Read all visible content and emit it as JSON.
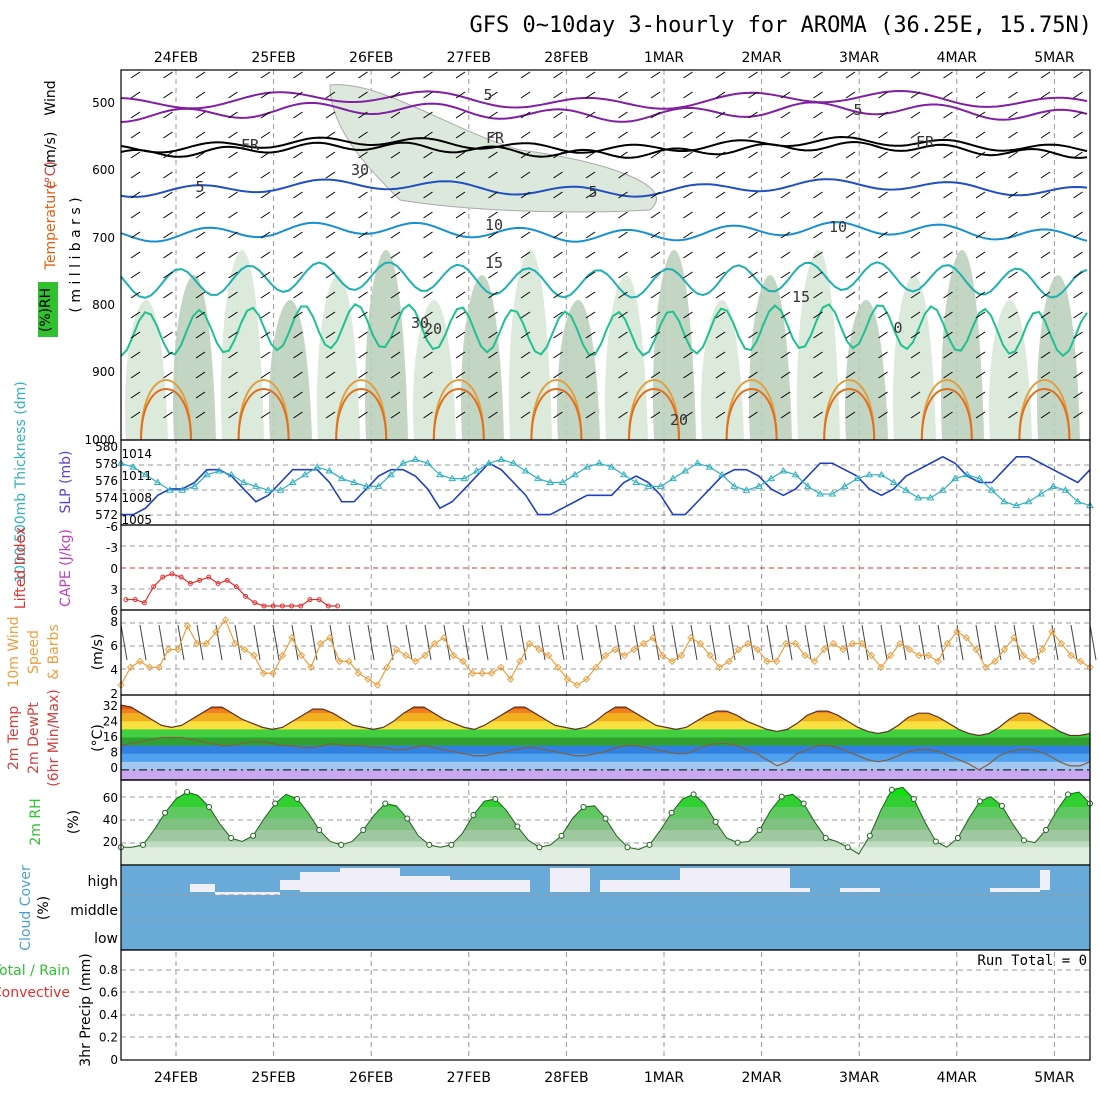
{
  "title": "GFS 0~10day 3-hourly for AROMA (36.25E, 15.75N)",
  "dates": [
    "24FEB",
    "25FEB",
    "26FEB",
    "27FEB",
    "28FEB",
    "1MAR",
    "2MAR",
    "3MAR",
    "4MAR",
    "5MAR"
  ],
  "run_total_label": "Run Total = 0",
  "colors": {
    "wind_speed": "#e8a040",
    "lifted_index": "#e03030",
    "slp": "#2040c0",
    "thickness": "#30b0c0",
    "rh_green": "#30c030",
    "cloud": "#6aaad8",
    "temp_fill": "#e06010",
    "dewpoint": "#806040"
  },
  "chart_data": [
    {
      "panel": "upper-air",
      "type": "heatmap",
      "ylabels": [
        {
          "text": "Wind",
          "color": "#000000"
        },
        {
          "text": "(m/s)",
          "color": "#000000"
        },
        {
          "text": "Temperature",
          "color": "#e06010"
        },
        {
          "text": "(°C)",
          "color": "#d04040"
        },
        {
          "text": "RH",
          "color": "#000000"
        },
        {
          "text": "(%)",
          "color": "#000000"
        },
        {
          "text": "( m i l l i b a r s )",
          "color": "#000000"
        }
      ],
      "yticks": [
        "500",
        "600",
        "700",
        "800",
        "900",
        "1000"
      ],
      "ylim": [
        450,
        1000
      ],
      "contour_labels": [
        "5",
        "5",
        "FR",
        "FR",
        "FR",
        "5",
        "5",
        "10",
        "10",
        "15",
        "15",
        "20",
        "20",
        "30",
        "30",
        "0"
      ]
    },
    {
      "panel": "slp-thickness",
      "type": "line",
      "ylabel_left": "1000-500mb Thickness (dm)",
      "ylabel_right": "SLP (mb)",
      "yticks_left": [
        "580",
        "578",
        "576",
        "574",
        "572"
      ],
      "yticks_right": [
        "1014",
        "1011",
        "1008",
        "1005"
      ],
      "ylim_slp": [
        1004,
        1016
      ],
      "series": [
        {
          "name": "SLP",
          "axis": "slp",
          "values": [
            1005,
            1005,
            1006,
            1008,
            1009,
            1009,
            1010,
            1012,
            1012,
            1011,
            1009,
            1007,
            1008,
            1010,
            1012,
            1012,
            1012,
            1010,
            1007,
            1007,
            1009,
            1011,
            1012,
            1012,
            1011,
            1009,
            1006,
            1007,
            1009,
            1011,
            1013,
            1012,
            1010,
            1008,
            1005,
            1005,
            1006,
            1007,
            1008,
            1008,
            1008,
            1010,
            1011,
            1010,
            1008,
            1005,
            1005,
            1007,
            1009,
            1011,
            1012,
            1012,
            1011,
            1009,
            1008,
            1009,
            1011,
            1013,
            1013,
            1012,
            1011,
            1009,
            1008,
            1009,
            1011,
            1012,
            1013,
            1014,
            1013,
            1011,
            1010,
            1010,
            1012,
            1014,
            1014,
            1013,
            1012,
            1011,
            1010,
            1012
          ]
        },
        {
          "name": "Thickness",
          "axis": "thickness",
          "values": [
            578.5,
            578,
            577,
            576,
            575,
            575,
            575.5,
            577,
            577.5,
            577,
            576,
            575.5,
            575,
            575,
            576,
            577,
            578,
            577.5,
            576.5,
            576,
            575.5,
            575.5,
            577,
            578.5,
            579,
            578.5,
            577,
            576.5,
            576.5,
            577.5,
            578.5,
            579,
            578.5,
            577.5,
            576.5,
            576,
            576,
            577,
            578,
            578.5,
            578,
            577,
            576,
            575.5,
            575.5,
            576.5,
            577.5,
            578.5,
            578,
            577,
            575.5,
            575,
            575.5,
            576.5,
            577.5,
            577,
            575.5,
            574.5,
            574.5,
            575.5,
            576.5,
            577,
            577,
            576,
            575,
            574,
            574,
            575,
            576.5,
            577,
            576.5,
            575,
            573.5,
            573,
            573.5,
            574.5,
            575.5,
            575,
            573.5,
            573
          ]
        }
      ]
    },
    {
      "panel": "lifted-index",
      "type": "line",
      "ylabel_left": "Lifted Index",
      "ylabel_right": "CAPE (J/kg)",
      "yticks": [
        "-6",
        "-3",
        "0",
        "3",
        "6"
      ],
      "ylim": [
        -6,
        6
      ],
      "series": [
        {
          "name": "Lifted Index",
          "values": [
            5,
            5,
            5.5,
            3,
            1.5,
            1,
            1.5,
            2.5,
            2,
            1.5,
            2.5,
            2,
            3,
            4.5,
            5.5,
            6,
            6,
            6,
            6,
            6,
            5,
            5,
            6,
            6
          ]
        }
      ]
    },
    {
      "panel": "wind-10m",
      "type": "line",
      "ylabel": "10m Wind Speed & Barbs",
      "yunit": "(m/s)",
      "yticks": [
        "8",
        "6",
        "4",
        "2"
      ],
      "ylim": [
        2,
        8.5
      ],
      "values": [
        2.5,
        4,
        4.5,
        4,
        4,
        5.5,
        5.5,
        7.5,
        6,
        6,
        7,
        8,
        6,
        5.5,
        5,
        3.5,
        3.5,
        5,
        6.5,
        5,
        4,
        6,
        6.5,
        4.5,
        4.5,
        3.5,
        3,
        2.5,
        4,
        5.5,
        5,
        4.5,
        5,
        6,
        6.5,
        5,
        4.5,
        3.5,
        3.5,
        3.5,
        4,
        3,
        4.5,
        6,
        5.5,
        5,
        4,
        3,
        2.5,
        3,
        4,
        5,
        5.5,
        5,
        5.5,
        6,
        6.5,
        5,
        4.5,
        5,
        6.5,
        6,
        5,
        4,
        4.5,
        5.5,
        6,
        5.5,
        4.5,
        4.5,
        6,
        6,
        5,
        4.5,
        5.5,
        6,
        5.5,
        6,
        6,
        5,
        4,
        5,
        6,
        5.5,
        5,
        5,
        4.5,
        6,
        7,
        6.5,
        5.5,
        4,
        4.5,
        5.5,
        6.5,
        5,
        4.5,
        5.5,
        7,
        6,
        5,
        4.5,
        4
      ]
    },
    {
      "panel": "temp-2m",
      "type": "area",
      "ylabel": "2m Temp 2m DewPt (6hr Min/Max)",
      "yunit": "(°C)",
      "yticks": [
        "32",
        "24",
        "16",
        "8",
        "0"
      ],
      "ylim": [
        -3,
        35
      ],
      "series": [
        {
          "name": "2m Temp",
          "values": [
            32,
            31,
            28,
            25,
            22,
            21,
            22,
            25,
            28,
            31,
            31,
            28,
            25,
            23,
            21,
            20,
            21,
            24,
            27,
            30,
            30,
            28,
            25,
            22,
            21,
            20,
            21,
            24,
            28,
            31,
            31,
            28,
            25,
            23,
            21,
            20,
            22,
            25,
            28,
            31,
            31,
            28,
            25,
            22,
            21,
            20,
            21,
            24,
            28,
            31,
            31,
            28,
            25,
            22,
            21,
            20,
            21,
            24,
            27,
            29,
            29,
            27,
            24,
            22,
            20,
            19,
            20,
            23,
            27,
            29,
            29,
            27,
            24,
            21,
            19,
            18,
            19,
            22,
            26,
            28,
            28,
            26,
            23,
            20,
            18,
            17,
            18,
            21,
            25,
            28,
            28,
            25,
            22,
            19,
            17,
            17,
            18
          ]
        },
        {
          "name": "2m DewPt",
          "values": [
            12,
            13,
            14,
            15,
            16,
            16,
            16,
            15,
            14,
            13,
            12,
            12,
            13,
            14,
            14,
            13,
            12,
            12,
            11,
            11,
            12,
            13,
            12,
            12,
            12,
            11,
            11,
            10,
            10,
            11,
            12,
            11,
            10,
            9,
            8,
            7,
            7,
            8,
            9,
            10,
            11,
            11,
            10,
            9,
            8,
            7,
            7,
            8,
            9,
            11,
            12,
            12,
            11,
            10,
            9,
            8,
            8,
            10,
            12,
            13,
            13,
            12,
            10,
            8,
            5,
            2,
            4,
            8,
            10,
            12,
            12,
            11,
            9,
            7,
            5,
            4,
            5,
            7,
            9,
            10,
            10,
            9,
            7,
            5,
            3,
            0,
            3,
            7,
            9,
            10,
            10,
            9,
            7,
            4,
            2,
            2,
            4
          ]
        }
      ]
    },
    {
      "panel": "rh-2m",
      "type": "area",
      "ylabel": "2m RH",
      "yunit": "(%)",
      "yticks": [
        "60",
        "40",
        "20"
      ],
      "ylim": [
        8,
        75
      ],
      "values": [
        20,
        20,
        22,
        35,
        50,
        62,
        68,
        65,
        55,
        40,
        28,
        25,
        30,
        45,
        58,
        66,
        62,
        50,
        35,
        25,
        22,
        25,
        35,
        48,
        58,
        56,
        45,
        30,
        22,
        20,
        22,
        32,
        48,
        60,
        62,
        52,
        38,
        26,
        20,
        22,
        30,
        45,
        55,
        56,
        45,
        30,
        20,
        18,
        22,
        35,
        50,
        62,
        66,
        58,
        42,
        28,
        24,
        25,
        35,
        52,
        64,
        66,
        58,
        42,
        28,
        25,
        20,
        14,
        30,
        52,
        70,
        72,
        62,
        42,
        25,
        20,
        28,
        45,
        60,
        64,
        56,
        40,
        26,
        24,
        35,
        52,
        66,
        68,
        58
      ]
    },
    {
      "panel": "cloud-cover",
      "type": "bar",
      "ylabel": "Cloud Cover",
      "yunit": "(%)",
      "ylevels": [
        "high",
        "middle",
        "low"
      ]
    },
    {
      "panel": "precip-3hr",
      "type": "bar",
      "ylabel_lines": [
        "Total / Rain",
        "Convective"
      ],
      "ylabel_unit": "3hr Precip (mm)",
      "yticks": [
        "0.8",
        "0.6",
        "0.4",
        "0.2",
        "0"
      ],
      "ylim": [
        0,
        1
      ],
      "values": []
    }
  ]
}
